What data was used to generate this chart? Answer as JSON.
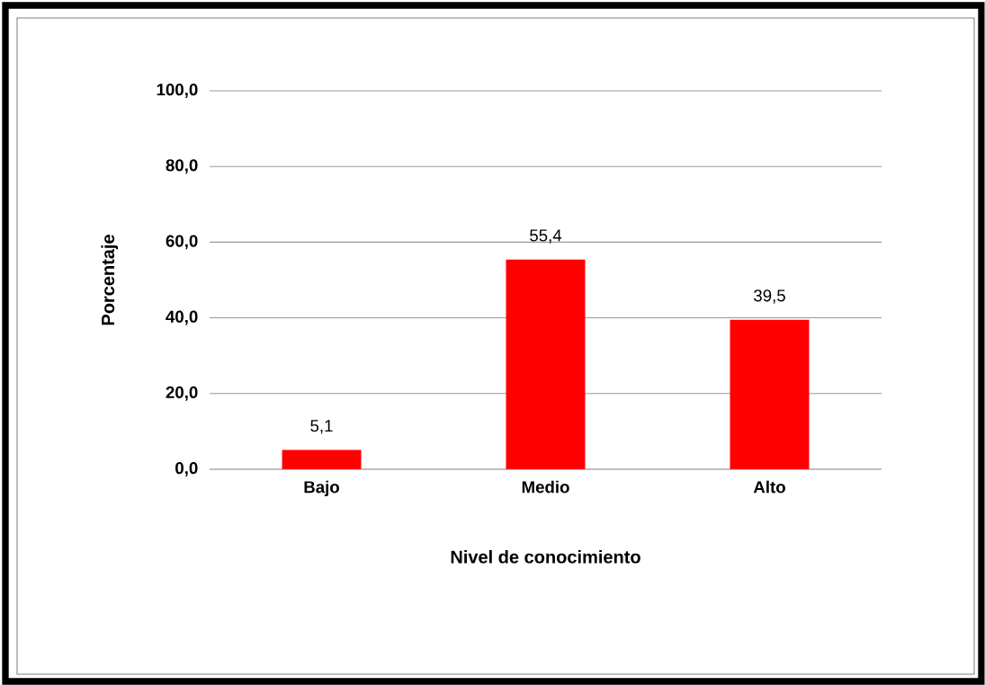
{
  "chart_data": {
    "type": "bar",
    "xlabel": "Nivel de conocimiento",
    "ylabel": "Porcentaje",
    "categories": [
      "Bajo",
      "Medio",
      "Alto"
    ],
    "values": [
      5.1,
      55.4,
      39.5
    ],
    "value_labels": [
      "5,1",
      "55,4",
      "39,5"
    ],
    "color": "#ff0000",
    "ylim": [
      0,
      100
    ],
    "yticks": [
      {
        "value": 0,
        "label": "0,0"
      },
      {
        "value": 20,
        "label": "20,0"
      },
      {
        "value": 40,
        "label": "40,0"
      },
      {
        "value": 60,
        "label": "60,0"
      },
      {
        "value": 80,
        "label": "80,0"
      },
      {
        "value": 100,
        "label": "100,0"
      }
    ],
    "grid": "y"
  }
}
